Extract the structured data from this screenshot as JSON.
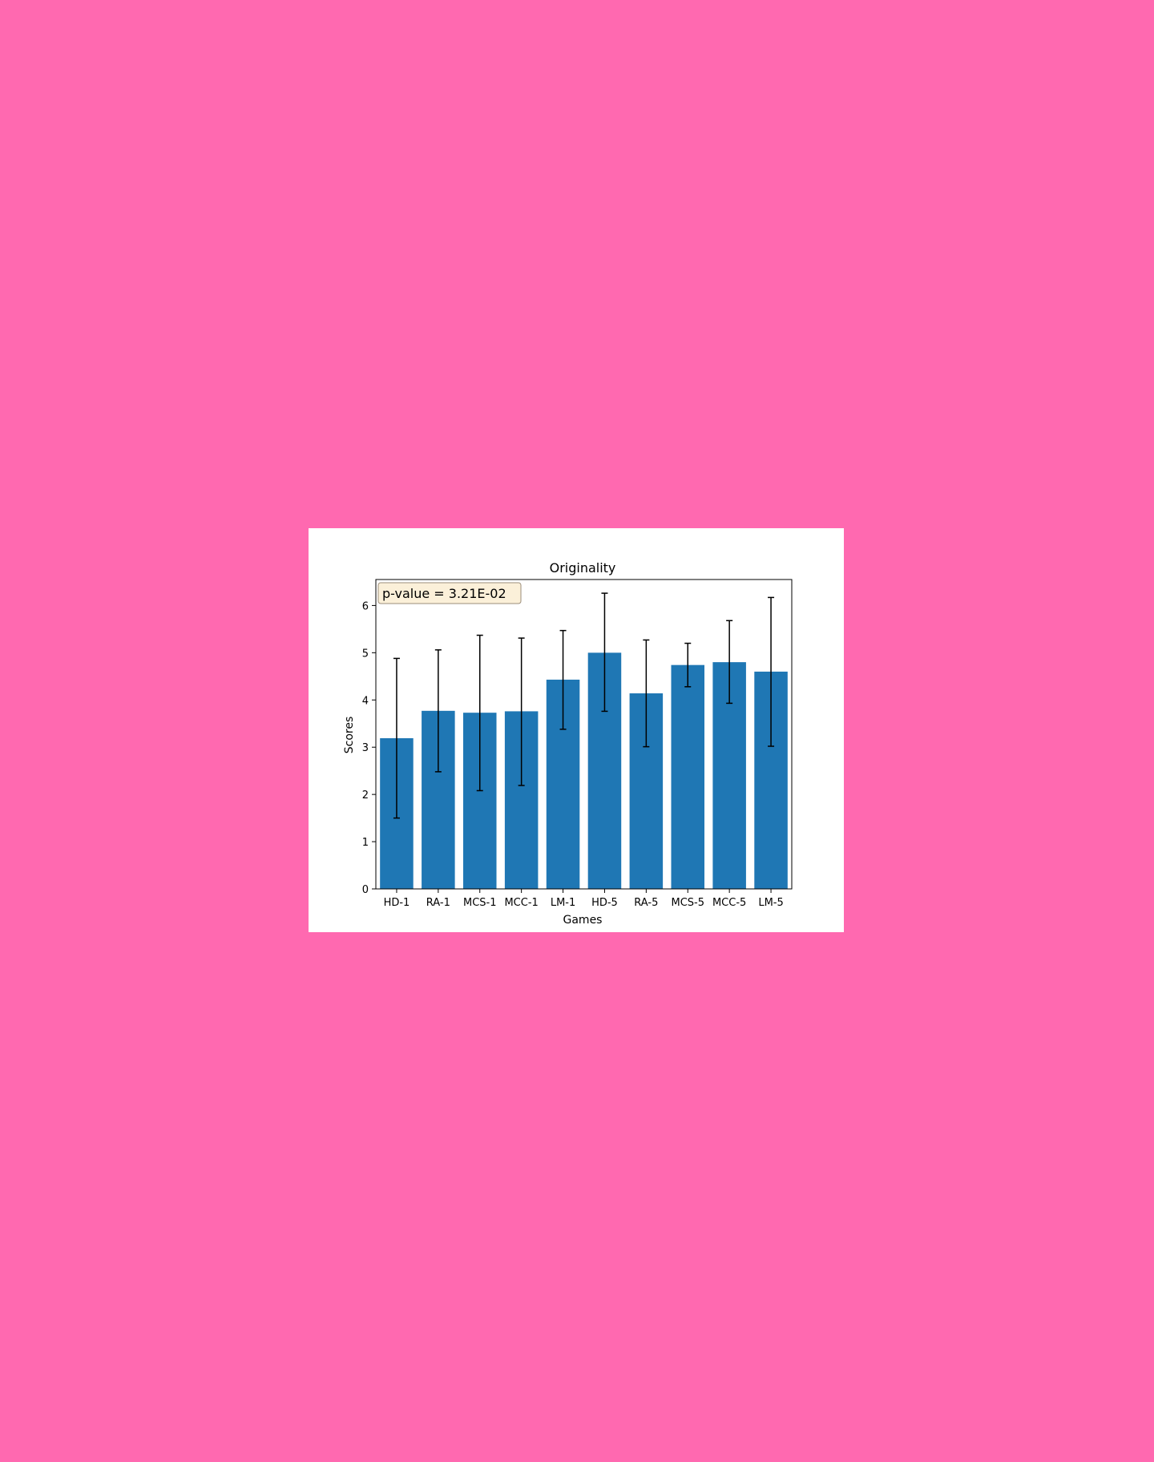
{
  "chart_data": {
    "type": "bar",
    "title": "Originality",
    "xlabel": "Games",
    "ylabel": "Scores",
    "categories": [
      "HD-1",
      "RA-1",
      "MCS-1",
      "MCC-1",
      "LM-1",
      "HD-5",
      "RA-5",
      "MCS-5",
      "MCC-5",
      "LM-5"
    ],
    "values": [
      3.19,
      3.77,
      3.73,
      3.76,
      4.43,
      5.0,
      4.14,
      4.74,
      4.8,
      4.6
    ],
    "error_low": [
      1.5,
      2.48,
      2.08,
      2.19,
      3.38,
      3.76,
      3.01,
      4.28,
      3.93,
      3.02
    ],
    "error_high": [
      4.88,
      5.06,
      5.37,
      5.31,
      5.47,
      6.26,
      5.27,
      5.2,
      5.68,
      6.17
    ],
    "ylim": [
      0,
      6.55
    ],
    "yticks": [
      0,
      1,
      2,
      3,
      4,
      5,
      6
    ],
    "annotation": "p-value = 3.21E-02",
    "grid": false,
    "colors": {
      "bar": "#1f77b4",
      "errorbar": "#000000",
      "annotation_bg": "#fbf0d9",
      "annotation_border": "#9b8e7a",
      "page_bg": "#ff69b0"
    }
  }
}
